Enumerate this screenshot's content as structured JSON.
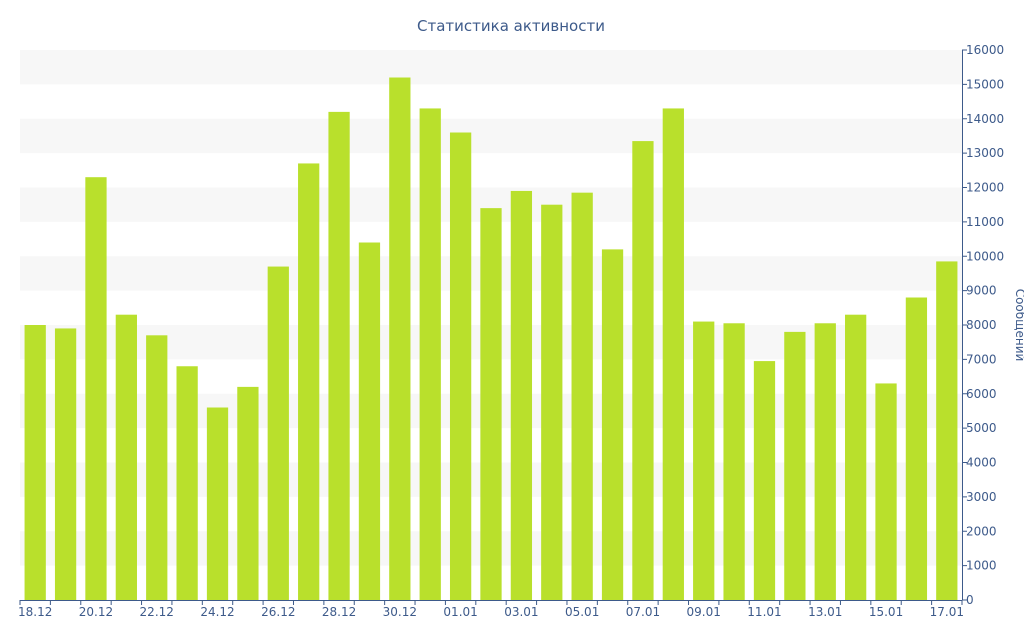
{
  "chart_data": {
    "type": "bar",
    "title": "Статистика активности",
    "xlabel": "",
    "ylabel": "Сообщений",
    "ylim": [
      0,
      16000
    ],
    "y_ticks": [
      0,
      1000,
      2000,
      3000,
      4000,
      5000,
      6000,
      7000,
      8000,
      9000,
      10000,
      11000,
      12000,
      13000,
      14000,
      15000,
      16000
    ],
    "y_axis_side": "right",
    "grid": "alternating-bands",
    "legend": "none",
    "bar_color": "#b9e02c",
    "band_color": "#f7f7f7",
    "axis_color": "#3d5a8a",
    "categories": [
      "18.12",
      "19.12",
      "20.12",
      "21.12",
      "22.12",
      "23.12",
      "24.12",
      "25.12",
      "26.12",
      "27.12",
      "28.12",
      "29.12",
      "30.12",
      "31.12",
      "01.01",
      "02.01",
      "03.01",
      "04.01",
      "05.01",
      "06.01",
      "07.01",
      "08.01",
      "09.01",
      "10.01",
      "11.01",
      "12.01",
      "13.01",
      "14.01",
      "15.01",
      "16.01",
      "17.01"
    ],
    "x_tick_labels": [
      "18.12",
      "20.12",
      "22.12",
      "24.12",
      "26.12",
      "28.12",
      "30.12",
      "01.01",
      "03.01",
      "05.01",
      "07.01",
      "09.01",
      "11.01",
      "13.01",
      "15.01",
      "17.01"
    ],
    "values": [
      8000,
      7900,
      12300,
      8300,
      7700,
      6800,
      5600,
      6200,
      9700,
      12700,
      14200,
      10400,
      15200,
      14300,
      13600,
      11400,
      11900,
      11500,
      11850,
      10200,
      13350,
      14300,
      8100,
      8050,
      6950,
      7800,
      8050,
      8300,
      6300,
      8800,
      9850
    ]
  }
}
